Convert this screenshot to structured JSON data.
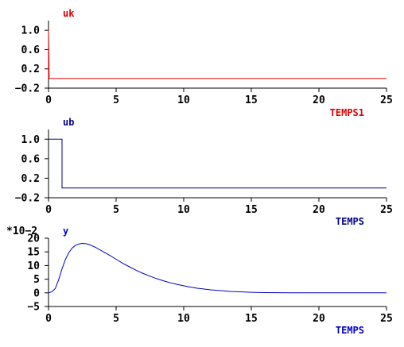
{
  "chart_data": [
    {
      "type": "line",
      "title": "uk",
      "xlabel": "TEMPS1",
      "ylabel": "",
      "color": "#dd0000",
      "xlim": [
        0,
        25
      ],
      "ylim": [
        -0.2,
        1.2
      ],
      "x_ticks": [
        0,
        5,
        10,
        15,
        20,
        25
      ],
      "x_tick_labels": [
        "0",
        "5",
        "10",
        "15",
        "20",
        "25"
      ],
      "y_ticks": [
        1.0,
        0.6,
        0.2,
        -0.2
      ],
      "y_tick_labels": [
        "1.0",
        "0.6",
        "0.2",
        "−0.2"
      ],
      "exponent_label": "",
      "series": [
        {
          "x": [
            0,
            0,
            0.05,
            25
          ],
          "y": [
            0,
            1.0,
            0,
            0
          ]
        }
      ]
    },
    {
      "type": "line",
      "title": "ub",
      "xlabel": "TEMPS",
      "ylabel": "",
      "color": "#00008b",
      "xlim": [
        0,
        25
      ],
      "ylim": [
        -0.2,
        1.2
      ],
      "x_ticks": [
        0,
        5,
        10,
        15,
        20,
        25
      ],
      "x_tick_labels": [
        "0",
        "5",
        "10",
        "15",
        "20",
        "25"
      ],
      "y_ticks": [
        1.0,
        0.6,
        0.2,
        -0.2
      ],
      "y_tick_labels": [
        "1.0",
        "0.6",
        "0.2",
        "−0.2"
      ],
      "exponent_label": "",
      "series": [
        {
          "x": [
            0,
            1,
            1,
            25
          ],
          "y": [
            1.0,
            1.0,
            0,
            0
          ]
        }
      ]
    },
    {
      "type": "line",
      "title": "y",
      "xlabel": "TEMPS",
      "ylabel": "",
      "color": "#0000cc",
      "xlim": [
        0,
        25
      ],
      "ylim": [
        -5,
        20
      ],
      "x_ticks": [
        0,
        5,
        10,
        15,
        20,
        25
      ],
      "x_tick_labels": [
        "0",
        "5",
        "10",
        "15",
        "20",
        "25"
      ],
      "y_ticks": [
        20,
        15,
        10,
        5,
        0,
        -5
      ],
      "y_tick_labels": [
        "20",
        "15",
        "10",
        "5",
        "0",
        "−5"
      ],
      "exponent_label": "*10−2",
      "series": [
        {
          "x": [
            0,
            0.25,
            0.5,
            0.75,
            1,
            1.25,
            1.5,
            1.75,
            2,
            2.25,
            2.5,
            2.75,
            3,
            3.5,
            4,
            4.5,
            5,
            5.5,
            6,
            6.5,
            7,
            7.5,
            8,
            8.5,
            9,
            9.5,
            10,
            10.5,
            11,
            11.5,
            12,
            12.5,
            13,
            13.5,
            14,
            14.5,
            15,
            16,
            17,
            18,
            19,
            20,
            21,
            22,
            23,
            24,
            25
          ],
          "y": [
            0,
            0.4,
            1.6,
            4.8,
            8.8,
            12.2,
            14.7,
            16.4,
            17.4,
            17.9,
            18.1,
            18.0,
            17.7,
            16.6,
            15.2,
            13.8,
            12.3,
            10.8,
            9.5,
            8.2,
            7.1,
            6.1,
            5.2,
            4.4,
            3.7,
            3.1,
            2.6,
            2.1,
            1.7,
            1.4,
            1.1,
            0.9,
            0.7,
            0.5,
            0.4,
            0.3,
            0.2,
            0.1,
            0.05,
            0.03,
            0.02,
            0.01,
            0,
            0,
            0,
            0,
            0
          ]
        }
      ]
    }
  ]
}
